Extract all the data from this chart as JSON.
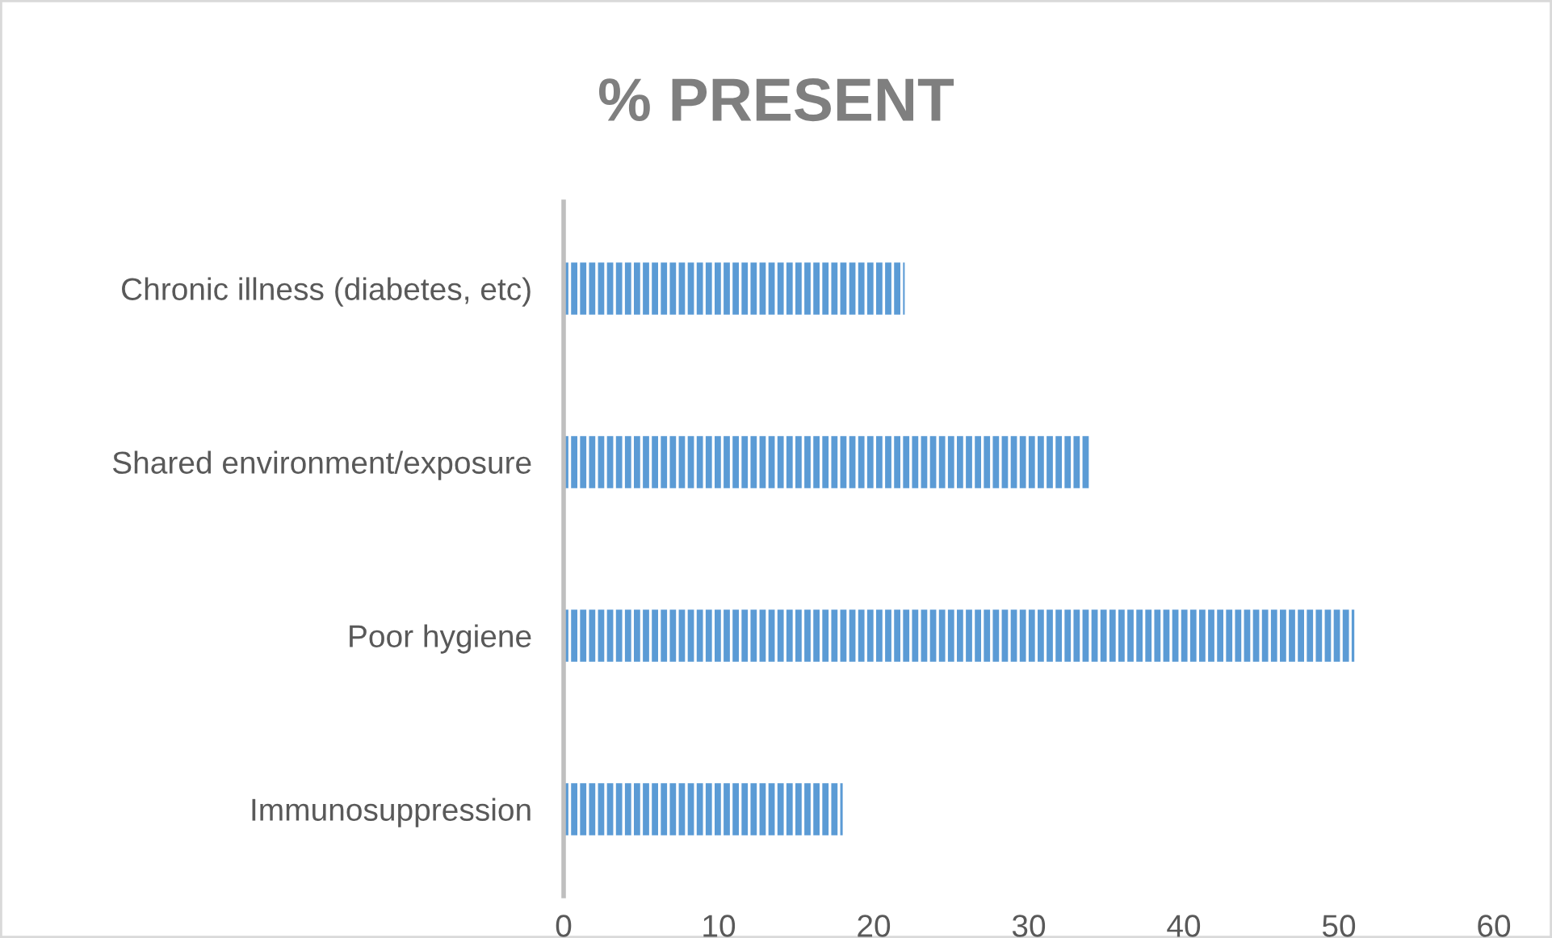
{
  "chart_data": {
    "type": "bar",
    "orientation": "horizontal",
    "title": "% PRESENT",
    "categories": [
      "Chronic illness (diabetes, etc)",
      "Shared environment/exposure",
      "Poor hygiene",
      "Immunosuppression"
    ],
    "values": [
      22,
      34,
      51,
      18
    ],
    "color": "#5b9bd5",
    "xlim": [
      0,
      60
    ],
    "xticks": [
      0,
      10,
      20,
      30,
      40,
      50,
      60
    ],
    "grid": false,
    "legend": false
  }
}
